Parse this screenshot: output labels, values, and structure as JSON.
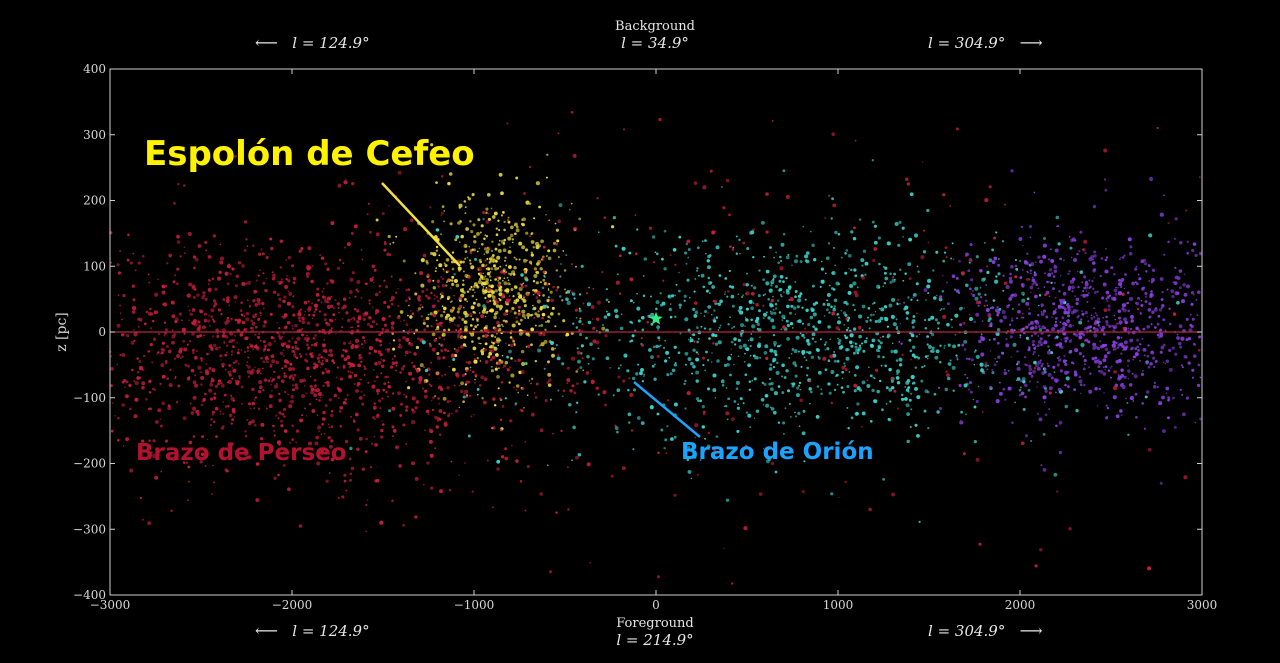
{
  "top": {
    "left_arrow_label": "l = 124.9°",
    "center_caption": "Background",
    "center_longitude": "l = 34.9°",
    "right_arrow_label": "l = 304.9°"
  },
  "bottom": {
    "left_arrow_label": "l = 124.9°",
    "center_caption": "Foreground",
    "center_longitude": "l = 214.9°",
    "right_arrow_label": "l = 304.9°"
  },
  "annotations": {
    "cepheus": "Espolón de Cefeo",
    "perseus": "Brazo de Perseo",
    "orion": "Brazo de Orión"
  },
  "colors": {
    "background": "#000000",
    "cepheus": "#f0e040",
    "perseus": "#c81e3c",
    "orion": "#3ad6cc",
    "purple": "#8a3ee0",
    "orion_label": "#1aa3ff",
    "zero_line": "#b4283c",
    "sun": "#33ee88"
  },
  "chart_data": {
    "type": "scatter",
    "title": "",
    "xlabel": "",
    "ylabel": "z [pc]",
    "xlim": [
      -3000,
      3000
    ],
    "ylim": [
      -400,
      400
    ],
    "xticks": [
      -3000,
      -2000,
      -1000,
      0,
      1000,
      2000,
      3000
    ],
    "yticks": [
      -400,
      -300,
      -200,
      -100,
      0,
      100,
      200,
      300,
      400
    ],
    "xtick_labels": [
      "−3000",
      "−2000",
      "−1000",
      "0",
      "1000",
      "2000",
      "3000"
    ],
    "ytick_labels": [
      "−400",
      "−300",
      "−200",
      "−100",
      "0",
      "100",
      "200",
      "300",
      "400"
    ],
    "grid": false,
    "reference_line": {
      "y": 0
    },
    "sun_marker": {
      "x": 0,
      "y": 20
    },
    "series": [
      {
        "name": "Espolón de Cefeo",
        "color": "#f0e040",
        "count": 700,
        "x_center": -900,
        "x_spread": 220,
        "y_center": 60,
        "y_spread": 75
      },
      {
        "name": "Brazo de Perseo",
        "color": "#c81e3c",
        "count": 1600,
        "x_center": -2000,
        "x_spread": 700,
        "y_center": -30,
        "y_spread": 85
      },
      {
        "name": "Brazo de Orión",
        "color": "#3ad6cc",
        "count": 1200,
        "x_center": 800,
        "x_spread": 700,
        "y_center": 0,
        "y_spread": 80
      },
      {
        "name": "",
        "color": "#8a3ee0",
        "count": 900,
        "x_center": 2400,
        "x_spread": 380,
        "y_center": 10,
        "y_spread": 70
      },
      {
        "name": "",
        "color": "#c81e3c",
        "count": 400,
        "x_center": 0,
        "x_spread": 1700,
        "y_center": 0,
        "y_spread": 160
      }
    ]
  }
}
